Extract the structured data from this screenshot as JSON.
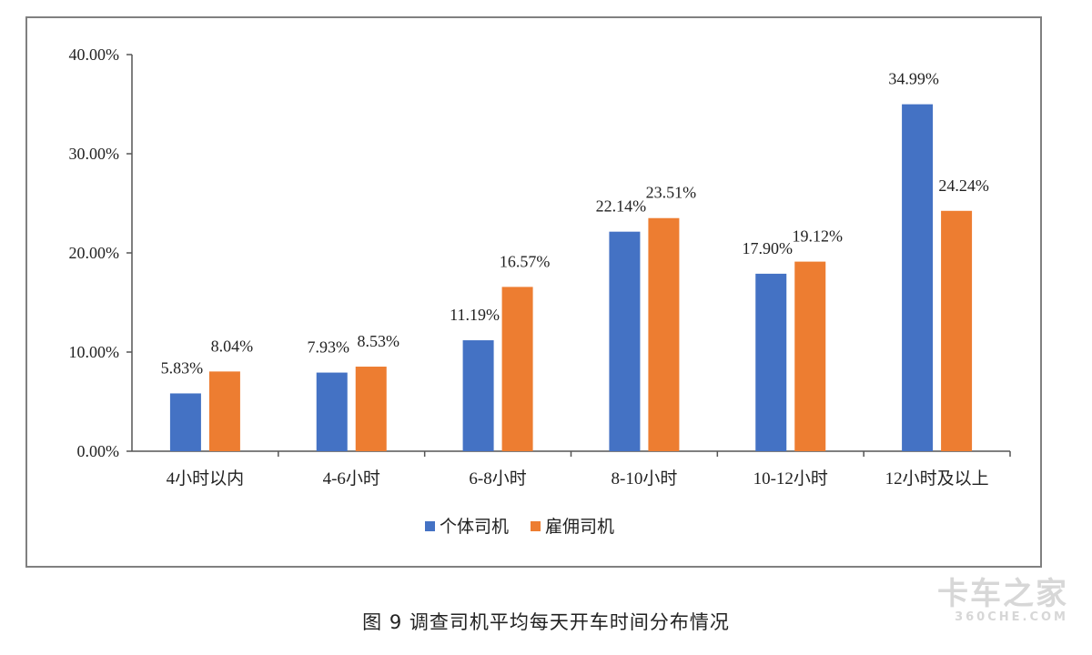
{
  "caption": "图 9  调查司机平均每天开车时间分布情况",
  "watermark": {
    "main": "卡车之家",
    "sub": "360CHE.COM"
  },
  "colors": {
    "series_1": "#4472C4",
    "series_2": "#ED7D31",
    "axis": "#555555",
    "frame": "#808080"
  },
  "chart_data": {
    "type": "bar",
    "title": "",
    "xlabel": "",
    "ylabel": "",
    "ylim": [
      0,
      40
    ],
    "y_ticks": [
      "0.00%",
      "10.00%",
      "20.00%",
      "30.00%",
      "40.00%"
    ],
    "grid": false,
    "legend_position": "bottom",
    "categories": [
      "4小时以内",
      "4-6小时",
      "6-8小时",
      "8-10小时",
      "10-12小时",
      "12小时及以上"
    ],
    "series": [
      {
        "name": "个体司机",
        "values": [
          5.83,
          7.93,
          11.19,
          22.14,
          17.9,
          34.99
        ],
        "labels": [
          "5.83%",
          "7.93%",
          "11.19%",
          "22.14%",
          "17.90%",
          "34.99%"
        ]
      },
      {
        "name": "雇佣司机",
        "values": [
          8.04,
          8.53,
          16.57,
          23.51,
          19.12,
          24.24
        ],
        "labels": [
          "8.04%",
          "8.53%",
          "16.57%",
          "23.51%",
          "19.12%",
          "24.24%"
        ]
      }
    ]
  }
}
